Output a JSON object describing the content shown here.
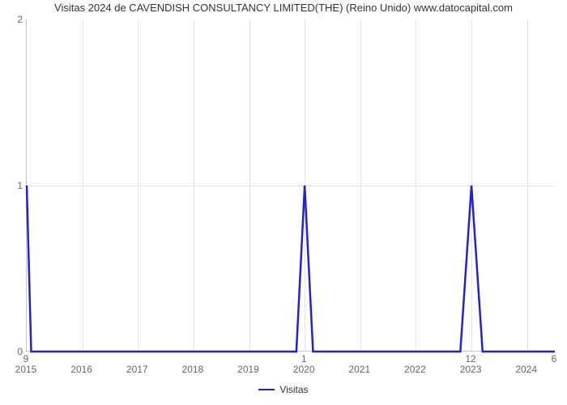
{
  "title": "Visitas 2024 de CAVENDISH CONSULTANCY LIMITED(THE) (Reino Unido) www.datocapital.com",
  "chart": {
    "type": "line",
    "background_color": "#ffffff",
    "grid_color": "#e6e6e6",
    "axis_color": "#c6c6c6",
    "tick_color": "#666666",
    "title_fontsize": 13,
    "tick_fontsize": 12,
    "x": {
      "min": 0,
      "max": 9.5,
      "labels": [
        "2015",
        "2016",
        "2017",
        "2018",
        "2019",
        "2020",
        "2021",
        "2022",
        "2023",
        "2024"
      ],
      "positions": [
        0,
        1,
        2,
        3,
        4,
        5,
        6,
        7,
        8,
        9
      ]
    },
    "y": {
      "min": 0,
      "max": 2,
      "ticks": [
        0,
        1,
        2
      ]
    },
    "secondary_x": {
      "labels": [
        "9",
        "1",
        "12",
        "6"
      ],
      "positions": [
        0,
        5,
        8,
        9.5
      ]
    },
    "series": {
      "name": "Visitas",
      "color": "#2521cf",
      "line_width": 2.5,
      "points": [
        {
          "x": 0.0,
          "y": 1.0
        },
        {
          "x": 0.08,
          "y": 0.0
        },
        {
          "x": 4.85,
          "y": 0.0
        },
        {
          "x": 5.0,
          "y": 1.0
        },
        {
          "x": 5.15,
          "y": 0.0
        },
        {
          "x": 7.8,
          "y": 0.0
        },
        {
          "x": 8.0,
          "y": 1.0
        },
        {
          "x": 8.2,
          "y": 0.0
        },
        {
          "x": 9.5,
          "y": 0.0
        }
      ]
    },
    "legend": {
      "label": "Visitas",
      "color": "#2521cf",
      "line_width": 2.5
    }
  }
}
